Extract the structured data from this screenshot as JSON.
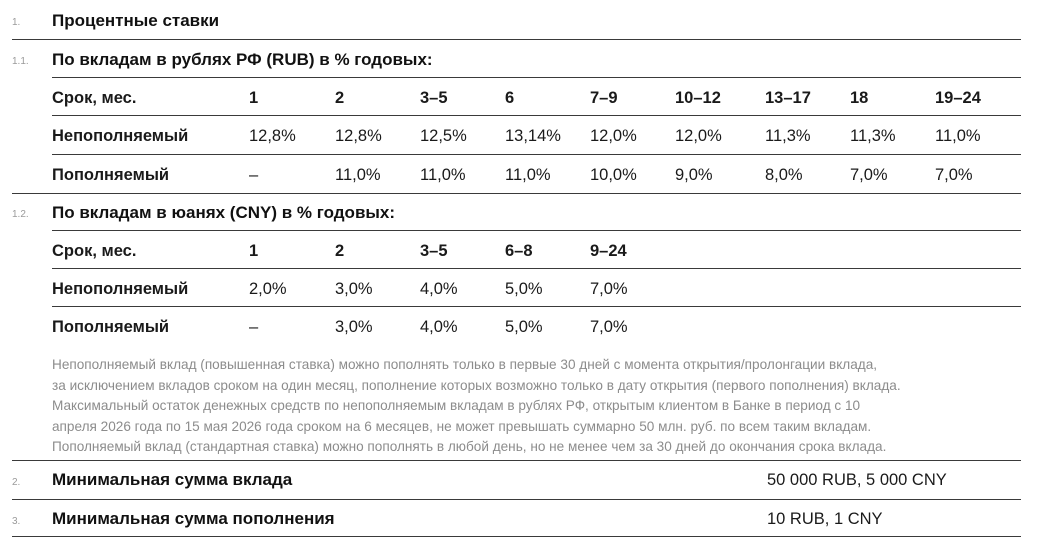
{
  "sections": {
    "rates": {
      "num": "1.",
      "title": "Процентные ставки"
    },
    "rub": {
      "num": "1.1.",
      "title": "По вкладам в рублях РФ (RUB) в % годовых:"
    },
    "cny": {
      "num": "1.2.",
      "title": "По вкладам в юанях (CNY) в % годовых:"
    },
    "min_deposit": {
      "num": "2.",
      "title": "Минимальная сумма вклада",
      "value": "50 000 RUB, 5 000 CNY"
    },
    "min_topup": {
      "num": "3.",
      "title": "Минимальная сумма пополнения",
      "value": "10 RUB, 1 CNY"
    }
  },
  "rub_table": {
    "header": [
      "Срок, мес.",
      "1",
      "2",
      "3–5",
      "6",
      "7–9",
      "10–12",
      "13–17",
      "18",
      "19–24"
    ],
    "rows": [
      [
        "Непополняемый",
        "12,8%",
        "12,8%",
        "12,5%",
        "13,14%",
        "12,0%",
        "12,0%",
        "11,3%",
        "11,3%",
        "11,0%"
      ],
      [
        "Пополняемый",
        "–",
        "11,0%",
        "11,0%",
        "11,0%",
        "10,0%",
        "9,0%",
        "8,0%",
        "7,0%",
        "7,0%"
      ]
    ]
  },
  "cny_table": {
    "header": [
      "Срок, мес.",
      "1",
      "2",
      "3–5",
      "6–8",
      "9–24"
    ],
    "rows": [
      [
        "Непополняемый",
        "2,0%",
        "3,0%",
        "4,0%",
        "5,0%",
        "7,0%"
      ],
      [
        "Пополняемый",
        "–",
        "3,0%",
        "4,0%",
        "5,0%",
        "7,0%"
      ]
    ]
  },
  "note_lines": [
    "Непополняемый вклад (повышенная ставка) можно пополнять только в первые 30 дней с момента открытия/пролонгации вклада,",
    "за исключением вкладов сроком на один месяц, пополнение которых возможно только в дату открытия (первого пополнения) вклада.",
    "Максимальный остаток денежных средств по непополняемым вкладам в рублях РФ, открытым клиентом в Банке в период с 10",
    "апреля 2026 года по 15 мая 2026 года сроком на 6 месяцев, не может превышать суммарно 50 млн. руб. по всем таким вкладам.",
    "Пополняемый вклад (стандартная ставка) можно пополнять в любой день, но не менее чем за 30 дней до окончания срока вклада."
  ]
}
